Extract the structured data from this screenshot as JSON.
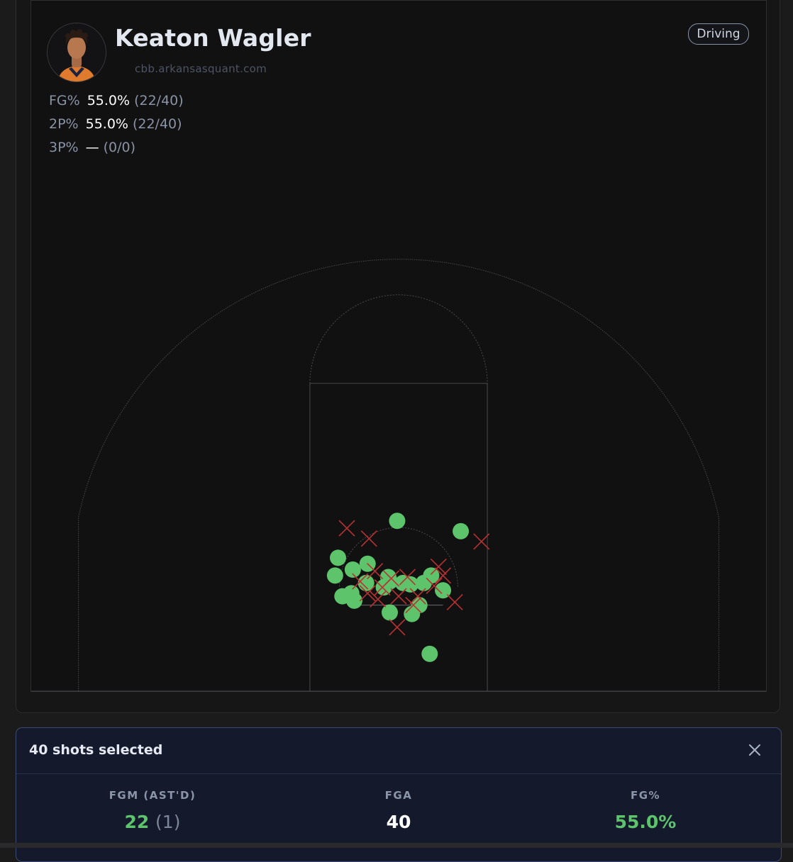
{
  "player": {
    "name": "Keaton Wagler",
    "source": "cbb.arkansasquant.com",
    "filter_badge": "Driving"
  },
  "stats": {
    "fg": {
      "label": "FG%",
      "pct": "55.0%",
      "ratio": "(22/40)"
    },
    "two": {
      "label": "2P%",
      "pct": "55.0%",
      "ratio": "(22/40)"
    },
    "three": {
      "label": "3P%",
      "pct": "—",
      "ratio": "(0/0)"
    }
  },
  "selection": {
    "title": "40 shots selected",
    "fgm_label": "FGM (AST'D)",
    "fgm_value": "22",
    "fgm_assisted": "(1)",
    "fga_label": "FGA",
    "fga_value": "40",
    "fgpct_label": "FG%",
    "fgpct_value": "55.0%"
  },
  "colors": {
    "made": "#5dc46b",
    "missed": "#b83232",
    "court_lines": "#4a4a4e"
  },
  "icons": {
    "close": "close-icon"
  },
  "chart_data": {
    "type": "scatter",
    "units": "feet (x: offset from hoop center, y: distance from baseline)",
    "hoop": {
      "x": 0,
      "y": 5.25
    },
    "made": [
      {
        "x": -0.1,
        "y": 9.7
      },
      {
        "x": 4.2,
        "y": 9.0
      },
      {
        "x": -4.1,
        "y": 7.2
      },
      {
        "x": -3.1,
        "y": 6.4
      },
      {
        "x": -4.3,
        "y": 6.0
      },
      {
        "x": -2.1,
        "y": 6.8
      },
      {
        "x": -2.2,
        "y": 5.5
      },
      {
        "x": -3.2,
        "y": 4.8
      },
      {
        "x": -3.0,
        "y": 4.3
      },
      {
        "x": -3.8,
        "y": 4.6
      },
      {
        "x": -0.7,
        "y": 5.9
      },
      {
        "x": -1.0,
        "y": 5.2
      },
      {
        "x": -0.6,
        "y": 5.6
      },
      {
        "x": 0.3,
        "y": 5.5
      },
      {
        "x": 0.8,
        "y": 5.4
      },
      {
        "x": 1.7,
        "y": 5.5
      },
      {
        "x": 2.2,
        "y": 6.0
      },
      {
        "x": 1.4,
        "y": 4.0
      },
      {
        "x": 3.0,
        "y": 5.0
      },
      {
        "x": -0.6,
        "y": 3.5
      },
      {
        "x": 0.9,
        "y": 3.4
      },
      {
        "x": 2.1,
        "y": 0.7
      }
    ],
    "missed": [
      {
        "x": -3.5,
        "y": 9.2
      },
      {
        "x": -2.0,
        "y": 8.5
      },
      {
        "x": 5.6,
        "y": 8.3
      },
      {
        "x": 2.7,
        "y": 6.6
      },
      {
        "x": 3.0,
        "y": 6.0
      },
      {
        "x": -1.6,
        "y": 6.3
      },
      {
        "x": -1.1,
        "y": 5.2
      },
      {
        "x": -0.5,
        "y": 5.8
      },
      {
        "x": 0.6,
        "y": 5.9
      },
      {
        "x": 1.3,
        "y": 4.6
      },
      {
        "x": -1.4,
        "y": 4.4
      },
      {
        "x": 0.0,
        "y": 4.6
      },
      {
        "x": 3.8,
        "y": 4.2
      },
      {
        "x": 2.4,
        "y": 5.3
      },
      {
        "x": -0.1,
        "y": 2.5
      },
      {
        "x": -2.1,
        "y": 4.8
      },
      {
        "x": 1.0,
        "y": 4.0
      },
      {
        "x": -2.6,
        "y": 5.6
      }
    ]
  }
}
